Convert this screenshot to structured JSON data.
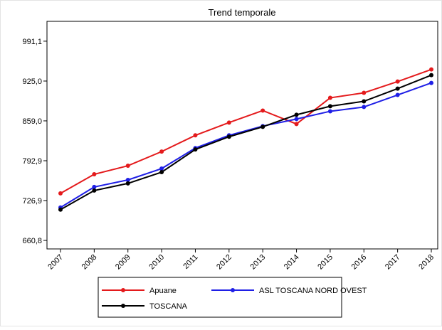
{
  "chart_data": {
    "type": "line",
    "title": "Trend temporale",
    "categories": [
      "2007",
      "2008",
      "2009",
      "2010",
      "2011",
      "2012",
      "2013",
      "2014",
      "2015",
      "2016",
      "2017",
      "2018"
    ],
    "series": [
      {
        "name": "Apuane",
        "color": "#e41a1c",
        "values": [
          738.8,
          770.5,
          784.6,
          808.1,
          835.0,
          856.2,
          876.1,
          853.8,
          897.2,
          905.5,
          924.2,
          944.2
        ]
      },
      {
        "name": "ASL TOSCANA NORD OVEST",
        "color": "#1f1fe6",
        "values": [
          715.4,
          749.4,
          761.1,
          779.9,
          813.9,
          835.0,
          850.3,
          862.0,
          874.9,
          882.0,
          901.9,
          921.9
        ]
      },
      {
        "name": "TOSCANA",
        "color": "#000000",
        "values": [
          711.9,
          743.5,
          755.3,
          774.0,
          811.6,
          832.7,
          849.1,
          869.1,
          883.2,
          891.4,
          912.5,
          934.8
        ]
      }
    ],
    "ylim": [
      646.7,
      1024.0
    ],
    "yticks": [
      {
        "value": 660.8,
        "label": "660,8"
      },
      {
        "value": 726.9,
        "label": "726,9"
      },
      {
        "value": 792.9,
        "label": "792,9"
      },
      {
        "value": 859.0,
        "label": "859,0"
      },
      {
        "value": 925.0,
        "label": "925,0"
      },
      {
        "value": 991.1,
        "label": "991,1"
      }
    ]
  }
}
